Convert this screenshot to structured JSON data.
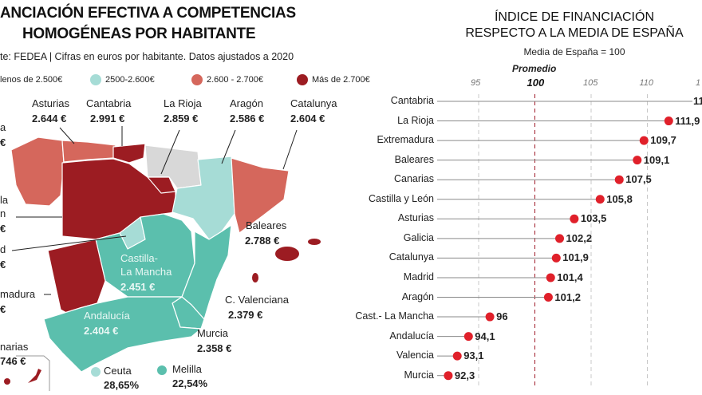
{
  "left": {
    "title_line1": "ANCIACIÓN EFECTIVA A COMPETENCIAS",
    "title_line2": "HOMOGÉNEAS POR HABITANTE",
    "source": "te: FEDEA | Cifras en euros por habitante. Datos ajustados a 2020",
    "legend": [
      {
        "label": "lenos de 2.500€",
        "color": "#5bbfad"
      },
      {
        "label": "2500-2.600€",
        "color": "#a6dcd6"
      },
      {
        "label": "2.600 - 2.700€",
        "color": "#d5675c"
      },
      {
        "label": "Más de 2.700€",
        "color": "#9c1c22"
      }
    ],
    "regions": {
      "asturias": {
        "name": "Asturias",
        "value": "2.644 €"
      },
      "cantabria": {
        "name": "Cantabria",
        "value": "2.991 €"
      },
      "larioja": {
        "name": "La Rioja",
        "value": "2.859 €"
      },
      "aragon": {
        "name": "Aragón",
        "value": "2.586 €"
      },
      "catalunya": {
        "name": "Catalunya",
        "value": "2.604 €"
      },
      "baleares": {
        "name": "Baleares",
        "value": "2.788 €"
      },
      "valencia": {
        "name": "C. Valenciana",
        "value": "2.379 €"
      },
      "murcia": {
        "name": "Murcia",
        "value": "2.358 €"
      },
      "clm": {
        "name1": "Castilla-",
        "name2": "La Mancha",
        "value": "2.451 €"
      },
      "andalucia": {
        "name": "Andalucía",
        "value": "2.404 €"
      },
      "ceuta": {
        "name": "Ceuta",
        "value": "28,65%"
      },
      "melilla": {
        "name": "Melilla",
        "value": "22,54%"
      },
      "galicia": {
        "name": "a",
        "value": "€"
      },
      "cyl": {
        "name1": "la",
        "name2": "n",
        "value": "€"
      },
      "madrid": {
        "name": "d",
        "value": "€"
      },
      "extremadura": {
        "name": "madura",
        "value": "€"
      },
      "canarias": {
        "name": "narias",
        "value": "746 €"
      }
    },
    "colors": {
      "dark": "#9c1c22",
      "mid": "#d5675c",
      "teal": "#5bbfad",
      "light": "#a6dcd6",
      "grey": "#d8d8d8"
    }
  },
  "chart_data": {
    "type": "dot",
    "title_line1": "ÍNDICE DE FINANCIACIÓN",
    "title_line2": "RESPECTO A LA MEDIA DE ESPAÑA",
    "subtitle": "Media de España = 100",
    "reference_label": "Promedio",
    "xticks": [
      "95",
      "100",
      "105",
      "110",
      "1"
    ],
    "xtick_values": [
      95,
      100,
      105,
      110,
      115
    ],
    "reference": 100,
    "dot_color": "#e0202a",
    "rows": [
      {
        "name": "Cantabria",
        "value": null,
        "label": "11"
      },
      {
        "name": "La Rioja",
        "value": 111.9,
        "label": "111,9"
      },
      {
        "name": "Extremadura",
        "value": 109.7,
        "label": "109,7"
      },
      {
        "name": "Baleares",
        "value": 109.1,
        "label": "109,1"
      },
      {
        "name": "Canarias",
        "value": 107.5,
        "label": "107,5"
      },
      {
        "name": "Castilla y León",
        "value": 105.8,
        "label": "105,8"
      },
      {
        "name": "Asturias",
        "value": 103.5,
        "label": "103,5"
      },
      {
        "name": "Galicia",
        "value": 102.2,
        "label": "102,2"
      },
      {
        "name": "Catalunya",
        "value": 101.9,
        "label": "101,9"
      },
      {
        "name": "Madrid",
        "value": 101.4,
        "label": "101,4"
      },
      {
        "name": "Aragón",
        "value": 101.2,
        "label": "101,2"
      },
      {
        "name": "Cast.- La Mancha",
        "value": 96,
        "label": "96"
      },
      {
        "name": "Andalucía",
        "value": 94.1,
        "label": "94,1"
      },
      {
        "name": "Valencia",
        "value": 93.1,
        "label": "93,1"
      },
      {
        "name": "Murcia",
        "value": 92.3,
        "label": "92,3"
      }
    ]
  }
}
